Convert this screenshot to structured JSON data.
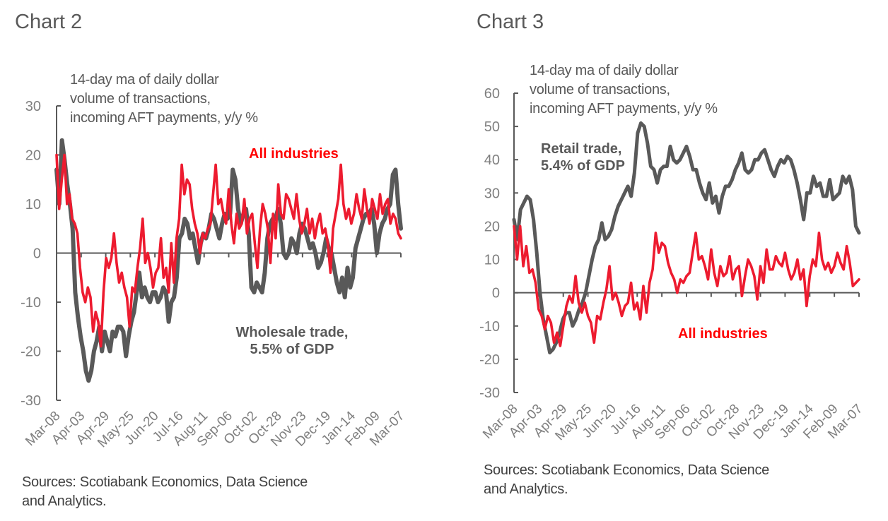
{
  "colors": {
    "wholesale_line": "#595959",
    "retail_line": "#595959",
    "all_industries_line": "#ed1b2f",
    "all_industries_label": "#ff0000",
    "axis": "#595959"
  },
  "chart_data": [
    {
      "type": "line",
      "title": "Chart 2",
      "description_lines": [
        "14-day  ma of daily dollar",
        "volume of transactions,",
        "incoming AFT payments, y/y %"
      ],
      "source_lines": [
        "Sources: Scotiabank Economics, Data Science",
        "and Analytics."
      ],
      "xlabel": "",
      "ylabel": "",
      "ylim": [
        -30,
        30
      ],
      "yticks": [
        "30",
        "20",
        "10",
        "0",
        "-10",
        "-20",
        "-30"
      ],
      "ytick_values": [
        30,
        20,
        10,
        0,
        -10,
        -20,
        -30
      ],
      "xticks": [
        "Mar-08",
        "Apr-03",
        "Apr-29",
        "May-25",
        "Jun-20",
        "Jul-16",
        "Aug-11",
        "Sep-06",
        "Oct-02",
        "Oct-28",
        "Nov-23",
        "Dec-19",
        "Jan-14",
        "Feb-09",
        "Mar-07"
      ],
      "annotations": [
        {
          "text_lines": [
            "All industries"
          ],
          "series": "All industries"
        },
        {
          "text_lines": [
            "Wholesale trade,",
            "5.5%  of GDP"
          ],
          "series": "Wholesale trade"
        }
      ],
      "series": [
        {
          "name": "Wholesale trade",
          "values": [
            17,
            10,
            23,
            19,
            14,
            10,
            5,
            -8,
            -13,
            -17,
            -20,
            -24,
            -26,
            -24,
            -20,
            -18,
            -15,
            -20,
            -16,
            -18,
            -20,
            -16,
            -17,
            -15,
            -15,
            -16,
            -21,
            -17,
            -14,
            -12,
            -8,
            -4,
            -9,
            -7,
            -9,
            -10,
            -8,
            -8,
            -10,
            -9,
            -7,
            -8,
            -14,
            -10,
            -9,
            -5,
            3,
            4,
            7,
            6,
            3,
            4,
            1,
            -2,
            2,
            4,
            3,
            5,
            8,
            7,
            5,
            3,
            6,
            8,
            7,
            8,
            17,
            15,
            9,
            6,
            8,
            9,
            4,
            -7,
            -8,
            -6,
            -7,
            -8,
            -4,
            3,
            6,
            7,
            7,
            9,
            6,
            0,
            -1,
            0,
            3,
            2,
            0,
            4,
            6,
            5,
            3,
            1,
            2,
            0,
            -3,
            -2,
            0,
            3,
            1,
            0,
            -3,
            -6,
            -8,
            -5,
            -9,
            -3,
            -7,
            -5,
            1,
            3,
            5,
            7,
            8,
            8,
            9,
            6,
            0,
            4,
            6,
            7,
            9,
            10,
            16,
            17,
            10,
            5
          ]
        },
        {
          "name": "All industries",
          "values": [
            20,
            9,
            15,
            20,
            10,
            12,
            7,
            6,
            4,
            -3,
            -8,
            -10,
            -7,
            -9,
            -16,
            -12,
            -14,
            -19,
            -8,
            -1,
            -3,
            -1,
            4,
            -2,
            -6,
            -4,
            -7,
            -9,
            -15,
            -7,
            -8,
            -3,
            1,
            7,
            -2,
            0,
            -3,
            -7,
            -4,
            -3,
            3,
            -5,
            -3,
            -8,
            2,
            -6,
            3,
            7,
            18,
            12,
            15,
            14,
            9,
            6,
            4,
            0,
            4,
            3,
            5,
            6,
            12,
            18,
            10,
            11,
            8,
            6,
            13,
            6,
            2,
            8,
            5,
            6,
            11,
            4,
            7,
            8,
            2,
            -3,
            5,
            10,
            8,
            5,
            -2,
            8,
            3,
            14,
            8,
            7,
            12,
            11,
            9,
            7,
            12,
            7,
            4,
            6,
            9,
            4,
            7,
            3,
            6,
            8,
            4,
            5,
            2,
            -4,
            5,
            8,
            11,
            18,
            10,
            7,
            9,
            6,
            8,
            12,
            9,
            7,
            13,
            9,
            6,
            11,
            9,
            7,
            12,
            8,
            10,
            11,
            6,
            8,
            7,
            4,
            3
          ]
        }
      ]
    },
    {
      "type": "line",
      "title": "Chart 3",
      "description_lines": [
        "14-day  ma of daily dollar",
        "volume of transactions,",
        "incoming AFT payments, y/y %"
      ],
      "source_lines": [
        "Sources: Scotiabank Economics, Data Science",
        "and Analytics."
      ],
      "xlabel": "",
      "ylabel": "",
      "ylim": [
        -30,
        60
      ],
      "yticks": [
        "60",
        "50",
        "40",
        "30",
        "20",
        "10",
        "0",
        "-10",
        "-20",
        "-30"
      ],
      "ytick_values": [
        60,
        50,
        40,
        30,
        20,
        10,
        0,
        -10,
        -20,
        -30
      ],
      "xticks": [
        "Mar-08",
        "Apr-03",
        "Apr-29",
        "May-25",
        "Jun-20",
        "Jul-16",
        "Aug-11",
        "Sep-06",
        "Oct-02",
        "Oct-28",
        "Nov-23",
        "Dec-19",
        "Jan-14",
        "Feb-09",
        "Mar-07"
      ],
      "annotations": [
        {
          "text_lines": [
            "Retail trade,",
            "5.4%  of GDP"
          ],
          "series": "Retail trade"
        },
        {
          "text_lines": [
            "All industries"
          ],
          "series": "All industries"
        }
      ],
      "series": [
        {
          "name": "Retail trade",
          "values": [
            22,
            16,
            25,
            27,
            29,
            28,
            22,
            12,
            0,
            -8,
            -13,
            -18,
            -17,
            -15,
            -12,
            -8,
            -6,
            -6,
            -10,
            -8,
            -5,
            -3,
            0,
            5,
            10,
            14,
            16,
            21,
            16,
            17,
            19,
            23,
            26,
            28,
            30,
            32,
            29,
            36,
            48,
            51,
            50,
            45,
            38,
            37,
            33,
            37,
            38,
            38,
            44,
            40,
            39,
            40,
            42,
            44,
            41,
            37,
            37,
            33,
            30,
            28,
            33,
            27,
            29,
            24,
            29,
            32,
            32,
            34,
            37,
            39,
            42,
            37,
            36,
            37,
            40,
            40,
            42,
            43,
            40,
            37,
            35,
            38,
            40,
            39,
            41,
            40,
            37,
            33,
            28,
            22,
            30,
            30,
            35,
            32,
            33,
            29,
            29,
            34,
            28,
            29,
            30,
            35,
            33,
            35,
            31,
            20,
            18
          ]
        },
        {
          "name": "All industries",
          "values": [
            20,
            10,
            20,
            8,
            14,
            6,
            7,
            3,
            -5,
            -7,
            -11,
            -7,
            -9,
            -15,
            -12,
            -16,
            -10,
            -4,
            -1,
            -3,
            5,
            -3,
            -6,
            -3,
            -7,
            -9,
            -15,
            -7,
            -8,
            -3,
            1,
            8,
            -2,
            0,
            -3,
            -7,
            -4,
            -3,
            3,
            -5,
            -3,
            -8,
            2,
            -6,
            3,
            7,
            18,
            12,
            15,
            14,
            9,
            6,
            4,
            0,
            4,
            3,
            5,
            6,
            12,
            18,
            10,
            11,
            8,
            4,
            13,
            6,
            2,
            8,
            5,
            6,
            11,
            4,
            7,
            8,
            -1,
            5,
            10,
            8,
            5,
            -2,
            8,
            3,
            13,
            7,
            7,
            11,
            9,
            8,
            12,
            7,
            4,
            6,
            10,
            4,
            7,
            -4,
            5,
            10,
            8,
            18,
            10,
            7,
            9,
            6,
            8,
            12,
            9,
            7,
            14,
            9,
            2,
            3,
            4
          ]
        }
      ]
    }
  ]
}
